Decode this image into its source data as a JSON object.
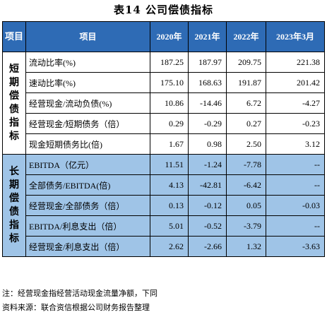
{
  "title": "表14  公司偿债指标",
  "header": {
    "group_col": "项目",
    "item_col": "项目",
    "years": [
      "2020年",
      "2021年",
      "2022年",
      "2023年3月"
    ]
  },
  "groups": [
    {
      "name": "短期偿债指标",
      "rows": [
        {
          "label": "流动比率(%)",
          "values": [
            "187.25",
            "187.97",
            "209.75",
            "221.38"
          ]
        },
        {
          "label": "速动比率(%)",
          "values": [
            "175.10",
            "168.63",
            "191.87",
            "201.42"
          ]
        },
        {
          "label": "经营现金/流动负债(%)",
          "values": [
            "10.86",
            "-14.46",
            "6.72",
            "-4.27"
          ]
        },
        {
          "label": "经营现金/短期债务（倍）",
          "values": [
            "0.29",
            "-0.29",
            "0.27",
            "-0.23"
          ]
        },
        {
          "label": "现金短期债务比(倍)",
          "values": [
            "1.67",
            "0.98",
            "2.50",
            "3.12"
          ]
        }
      ]
    },
    {
      "name": "长期偿债指标",
      "rows": [
        {
          "label": "EBITDA（亿元）",
          "values": [
            "11.51",
            "-1.24",
            "-7.78",
            "--"
          ]
        },
        {
          "label": "全部债务/EBITDA(倍)",
          "values": [
            "4.13",
            "-42.81",
            "-6.42",
            "--"
          ]
        },
        {
          "label": "经营现金/全部债务（倍）",
          "values": [
            "0.13",
            "-0.12",
            "0.05",
            "-0.03"
          ]
        },
        {
          "label": "EBITDA/利息支出（倍）",
          "values": [
            "5.01",
            "-0.52",
            "-3.79",
            "--"
          ]
        },
        {
          "label": "经营现金/利息支出（倍）",
          "values": [
            "2.62",
            "-2.66",
            "1.32",
            "-3.63"
          ]
        }
      ]
    }
  ],
  "notes": {
    "note": "注：经营现金指经营活动现金流量净额，下同",
    "source": "资料来源：联合资信根据公司财务报告整理"
  },
  "colors": {
    "header_bg": "#2e6bb5",
    "long_term_bg": "#9fc4e7"
  }
}
